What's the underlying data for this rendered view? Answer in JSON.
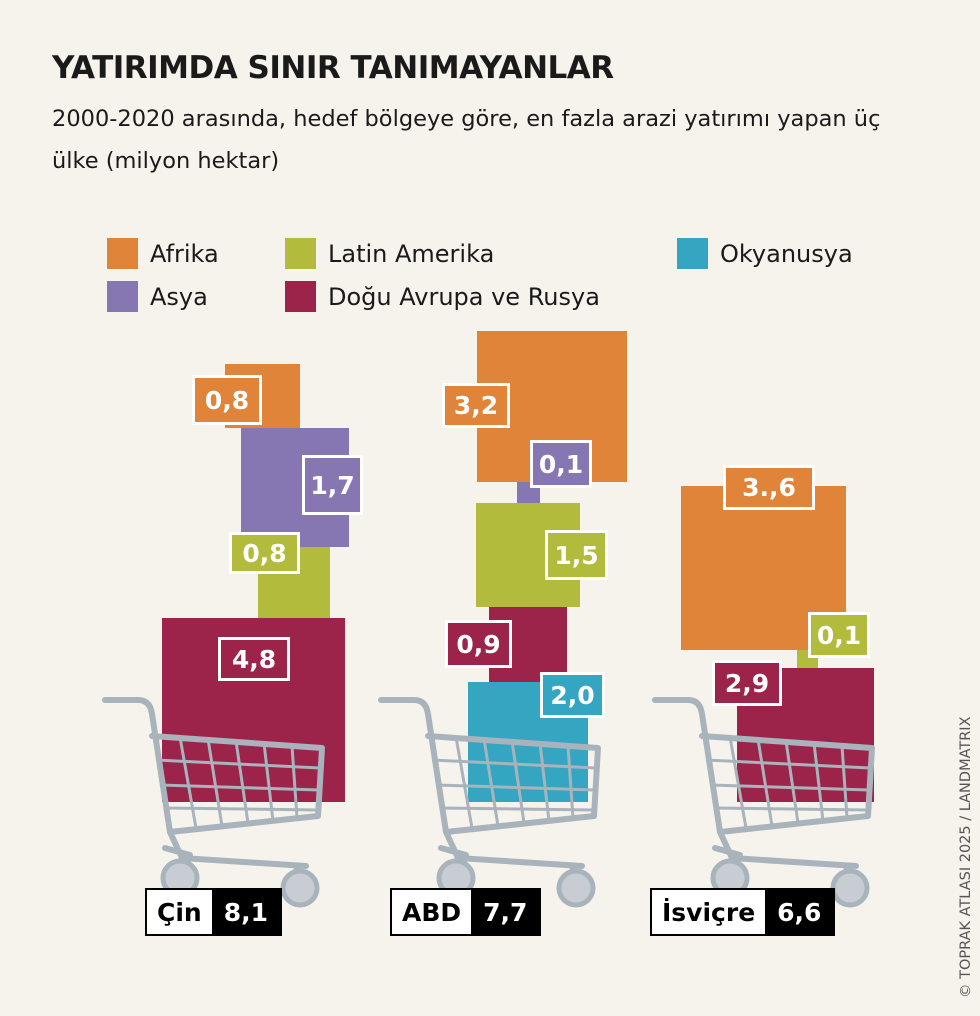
{
  "title": "YATIRIMDA SINIR TANIMAYANLAR",
  "subtitle": "2000-2020 arasında, hedef bölgeye göre, en fazla arazi yatırımı yapan üç ülke (milyon hektar)",
  "credit": "© TOPRAK ATLASI 2025 / LANDMATRIX",
  "colors": {
    "Afrika": "#e0843a",
    "Asya": "#8677b3",
    "Latin Amerika": "#b3bb3c",
    "Doğu Avrupa ve Rusya": "#9c2349",
    "Okyanusya": "#35a6c2",
    "cart": "#a9b3bc",
    "background": "#f6f3ec"
  },
  "legend": [
    {
      "label": "Afrika",
      "color": "#e0843a"
    },
    {
      "label": "Asya",
      "color": "#8677b3"
    },
    {
      "label": "Latin Amerika",
      "color": "#b3bb3c"
    },
    {
      "label": "Doğu Avrupa ve Rusya",
      "color": "#9c2349"
    },
    {
      "label": "Okyanusya",
      "color": "#35a6c2"
    }
  ],
  "chart_data": {
    "type": "stacked squares (area-proportional)",
    "title": "YATIRIMDA SINIR TANIMAYANLAR",
    "unit": "milyon hektar",
    "legend_placement": "top",
    "countries": [
      {
        "name": "Çin",
        "total": 8.1,
        "total_label": "8,1",
        "items": [
          {
            "region": "Afrika",
            "value": 0.8,
            "label": "0,8"
          },
          {
            "region": "Asya",
            "value": 1.7,
            "label": "1,7"
          },
          {
            "region": "Latin Amerika",
            "value": 0.8,
            "label": "0,8"
          },
          {
            "region": "Doğu Avrupa ve Rusya",
            "value": 4.8,
            "label": "4,8"
          }
        ]
      },
      {
        "name": "ABD",
        "total": 7.7,
        "total_label": "7,7",
        "items": [
          {
            "region": "Afrika",
            "value": 3.2,
            "label": "3,2"
          },
          {
            "region": "Asya",
            "value": 0.1,
            "label": "0,1"
          },
          {
            "region": "Latin Amerika",
            "value": 1.5,
            "label": "1,5"
          },
          {
            "region": "Doğu Avrupa ve Rusya",
            "value": 0.9,
            "label": "0,9"
          },
          {
            "region": "Okyanusya",
            "value": 2.0,
            "label": "2,0"
          }
        ]
      },
      {
        "name": "İsviçre",
        "total": 6.6,
        "total_label": "6,6",
        "items": [
          {
            "region": "Afrika",
            "value": 3.6,
            "label": "3.,6"
          },
          {
            "region": "Latin Amerika",
            "value": 0.1,
            "label": "0,1"
          },
          {
            "region": "Doğu Avrupa ve Rusya",
            "value": 2.9,
            "label": "2,9"
          }
        ]
      }
    ]
  }
}
